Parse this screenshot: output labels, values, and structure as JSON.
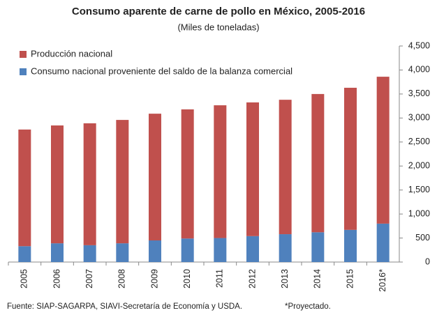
{
  "chart_data": {
    "type": "stacked_bar",
    "title": "Consumo aparente de carne de pollo en México, 2005-2016",
    "subtitle": "(Miles de toneladas)",
    "categories": [
      "2005",
      "2006",
      "2007",
      "2008",
      "2009",
      "2010",
      "2011",
      "2012",
      "2013",
      "2014",
      "2015",
      "2016*"
    ],
    "series": [
      {
        "name": "Producción nacional",
        "color": "#c0504d",
        "values": [
          2430,
          2455,
          2540,
          2570,
          2640,
          2690,
          2765,
          2785,
          2800,
          2880,
          2960,
          3060
        ]
      },
      {
        "name": "Consumo nacional proveniente del saldo de la balanza comercial",
        "color": "#4f81bd",
        "values": [
          330,
          390,
          350,
          390,
          450,
          490,
          500,
          540,
          580,
          620,
          670,
          800
        ]
      }
    ],
    "ylim": [
      0,
      4500
    ],
    "yticks": [
      0,
      500,
      {
        "value": 1000,
        "label": "1,000"
      },
      {
        "value": 1500,
        "label": "1,500"
      },
      {
        "value": 2000,
        "label": "2,000"
      },
      {
        "value": 2500,
        "label": "2,500"
      },
      {
        "value": 3000,
        "label": "3,000"
      },
      {
        "value": 3500,
        "label": "3,500"
      },
      {
        "value": 4000,
        "label": "4,000"
      },
      {
        "value": 4500,
        "label": "4,500"
      }
    ],
    "source": "Fuente: SIAP-SAGARPA, SIAVI-Secretaría de Economía y USDA.",
    "note": "*Proyectado.",
    "legend": "top-left"
  }
}
